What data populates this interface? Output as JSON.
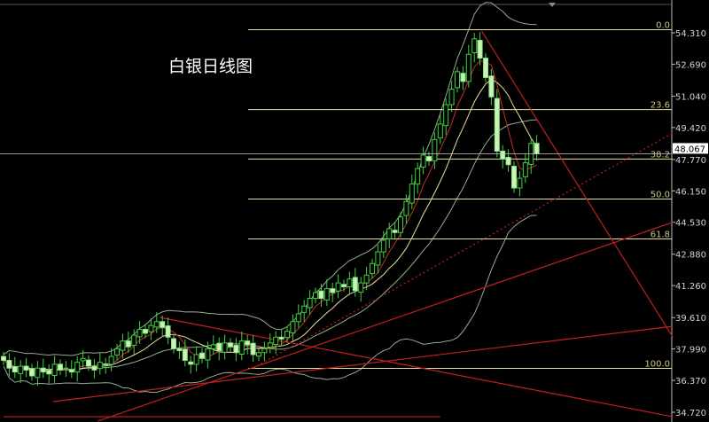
{
  "title": "白银日线图",
  "chart_data": {
    "type": "candlestick",
    "title": "白银日线图",
    "ylim": [
      34.3,
      55.0
    ],
    "y_ticks": [
      "54.310",
      "52.690",
      "51.040",
      "49.420",
      "47.770",
      "46.150",
      "44.530",
      "42.880",
      "41.260",
      "39.610",
      "37.990",
      "36.370",
      "34.720"
    ],
    "current_price": "48.067",
    "close": [
      37.4,
      37.0,
      36.8,
      37.1,
      36.9,
      36.6,
      37.0,
      36.8,
      36.7,
      37.2,
      36.9,
      37.0,
      36.8,
      37.3,
      37.5,
      37.1,
      36.9,
      37.3,
      37.2,
      37.6,
      38.0,
      38.4,
      38.1,
      38.7,
      39.0,
      38.8,
      39.2,
      39.4,
      39.1,
      38.6,
      38.0,
      37.9,
      37.4,
      37.2,
      37.7,
      37.5,
      38.0,
      38.2,
      37.9,
      38.3,
      38.1,
      37.8,
      38.4,
      38.2,
      37.7,
      37.8,
      38.0,
      38.3,
      38.6,
      38.5,
      38.9,
      39.4,
      39.8,
      40.2,
      40.6,
      40.9,
      40.6,
      41.1,
      40.9,
      41.4,
      41.2,
      41.6,
      41.0,
      41.4,
      41.8,
      42.4,
      43.0,
      43.6,
      44.2,
      44.0,
      44.8,
      45.6,
      46.5,
      47.3,
      48.0,
      47.7,
      48.8,
      49.6,
      50.6,
      51.4,
      52.3,
      51.8,
      53.2,
      54.0,
      53.0,
      52.0,
      51.0,
      48.2,
      47.8,
      47.5,
      46.3,
      46.8,
      47.6,
      48.6,
      48.067
    ],
    "fibonacci": {
      "high": 54.47,
      "low": 36.99,
      "levels": [
        {
          "label": "0.0",
          "ratio": 0.0
        },
        {
          "label": "23.6",
          "ratio": 0.236
        },
        {
          "label": "38.2",
          "ratio": 0.382
        },
        {
          "label": "50.0",
          "ratio": 0.5
        },
        {
          "label": "61.8",
          "ratio": 0.618
        },
        {
          "label": "100.0",
          "ratio": 1.0
        }
      ]
    },
    "trendlines": [
      {
        "from": [
          84.3,
          54.4
        ],
        "to": [
          118,
          38.6
        ],
        "style": "solid"
      },
      {
        "from": [
          44,
          36.99
        ],
        "to": [
          118,
          49.14
        ],
        "style": "dotted"
      },
      {
        "from": [
          8.7,
          35.27
        ],
        "to": [
          118,
          39.16
        ],
        "style": "solid"
      },
      {
        "from": [
          16.6,
          34.26
        ],
        "to": [
          118,
          44.53
        ],
        "style": "solid"
      },
      {
        "from": [
          27.5,
          39.62
        ],
        "to": [
          118,
          34.49
        ],
        "style": "solid"
      },
      {
        "from": [
          0,
          34.49
        ],
        "to": [
          77,
          34.49
        ],
        "style": "solid"
      }
    ],
    "colors": {
      "up": "#3fd23f",
      "down": "#c8f5b0",
      "ma5": "#c0302a",
      "ma10": "#e8e0a0",
      "bollinger": "#8fb08f",
      "trend": "#c02020",
      "fib": "#e6e0a0"
    }
  }
}
